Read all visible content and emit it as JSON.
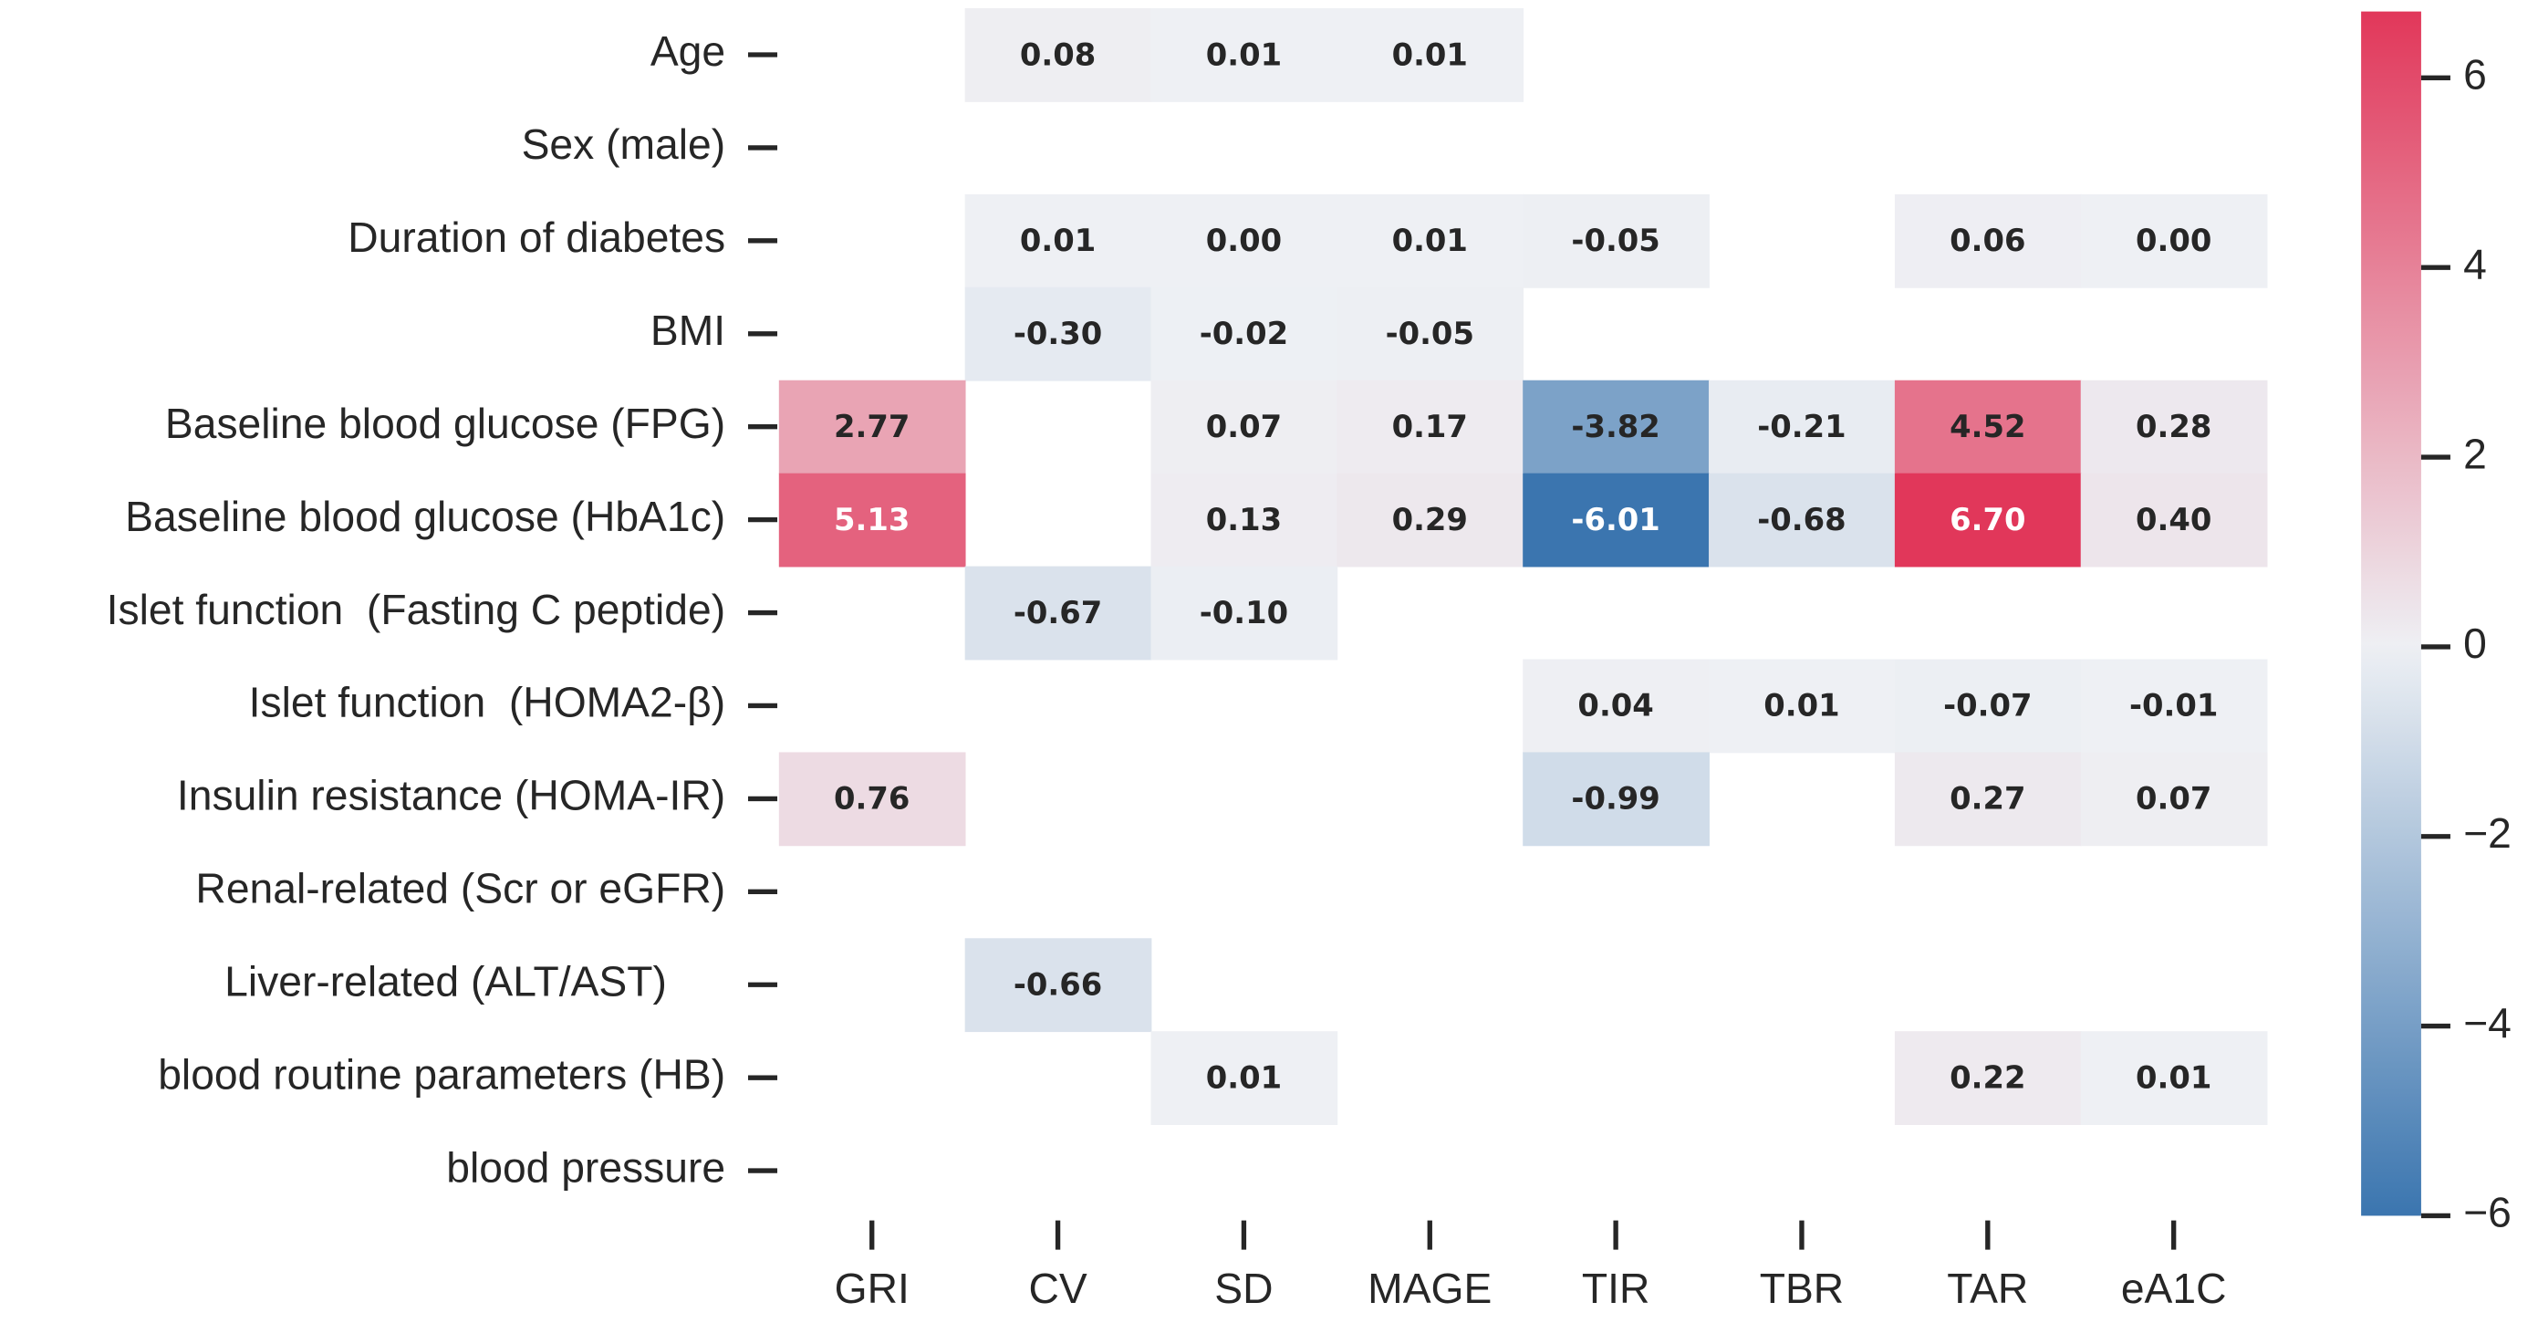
{
  "chart_data": {
    "type": "heatmap",
    "rows": [
      "Age",
      "Sex (male)",
      "Duration of diabetes",
      "BMI",
      "Baseline blood glucose (FPG)",
      "Baseline blood glucose (HbA1c)",
      "Islet function  (Fasting C peptide)",
      "Islet function  (HOMA2-β)",
      "Insulin resistance (HOMA-IR)",
      "Renal-related (Scr or eGFR)",
      "Liver-related (ALT/AST)     ",
      "blood routine parameters (HB)",
      "blood pressure"
    ],
    "columns": [
      "GRI",
      "CV",
      "SD",
      "MAGE",
      "TIR",
      "TBR",
      "TAR",
      "eA1C"
    ],
    "values": [
      [
        null,
        0.08,
        0.01,
        0.01,
        null,
        null,
        null,
        null
      ],
      [
        null,
        null,
        null,
        null,
        null,
        null,
        null,
        null
      ],
      [
        null,
        0.01,
        0.0,
        0.01,
        -0.05,
        null,
        0.06,
        0.0
      ],
      [
        null,
        -0.3,
        -0.02,
        -0.05,
        null,
        null,
        null,
        null
      ],
      [
        2.77,
        null,
        0.07,
        0.17,
        -3.82,
        -0.21,
        4.52,
        0.28
      ],
      [
        5.13,
        null,
        0.13,
        0.29,
        -6.01,
        -0.68,
        6.7,
        0.4
      ],
      [
        null,
        -0.67,
        -0.1,
        null,
        null,
        null,
        null,
        null
      ],
      [
        null,
        null,
        null,
        null,
        0.04,
        0.01,
        -0.07,
        -0.01
      ],
      [
        0.76,
        null,
        null,
        null,
        -0.99,
        null,
        0.27,
        0.07
      ],
      [
        null,
        null,
        null,
        null,
        null,
        null,
        null,
        null
      ],
      [
        null,
        -0.66,
        null,
        null,
        null,
        null,
        null,
        null
      ],
      [
        null,
        null,
        0.01,
        null,
        null,
        null,
        0.22,
        0.01
      ],
      [
        null,
        null,
        null,
        null,
        null,
        null,
        null,
        null
      ]
    ],
    "value_labels": [
      [
        null,
        "0.08",
        "0.01",
        "0.01",
        null,
        null,
        null,
        null
      ],
      [
        null,
        null,
        null,
        null,
        null,
        null,
        null,
        null
      ],
      [
        null,
        "0.01",
        "0.00",
        "0.01",
        "-0.05",
        null,
        "0.06",
        "0.00"
      ],
      [
        null,
        "-0.30",
        "-0.02",
        "-0.05",
        null,
        null,
        null,
        null
      ],
      [
        "2.77",
        null,
        "0.07",
        "0.17",
        "-3.82",
        "-0.21",
        "4.52",
        "0.28"
      ],
      [
        "5.13",
        null,
        "0.13",
        "0.29",
        "-6.01",
        "-0.68",
        "6.70",
        "0.40"
      ],
      [
        null,
        "-0.67",
        "-0.10",
        null,
        null,
        null,
        null,
        null
      ],
      [
        null,
        null,
        null,
        null,
        "0.04",
        "0.01",
        "-0.07",
        "-0.01"
      ],
      [
        "0.76",
        null,
        null,
        null,
        "-0.99",
        null,
        "0.27",
        "0.07"
      ],
      [
        null,
        null,
        null,
        null,
        null,
        null,
        null,
        null
      ],
      [
        null,
        "-0.66",
        null,
        null,
        null,
        null,
        null,
        null
      ],
      [
        null,
        null,
        "0.01",
        null,
        null,
        null,
        "0.22",
        "0.01"
      ],
      [
        null,
        null,
        null,
        null,
        null,
        null,
        null,
        null
      ]
    ],
    "clim": [
      -6,
      6.7
    ],
    "cticks": [
      {
        "value": -6,
        "label": "−6"
      },
      {
        "value": -4,
        "label": "−4"
      },
      {
        "value": -2,
        "label": "−2"
      },
      0,
      2,
      4,
      6
    ],
    "colors": {
      "negative": "#3b75af",
      "center": "#eef0f4",
      "positive": "#e1375a"
    }
  }
}
